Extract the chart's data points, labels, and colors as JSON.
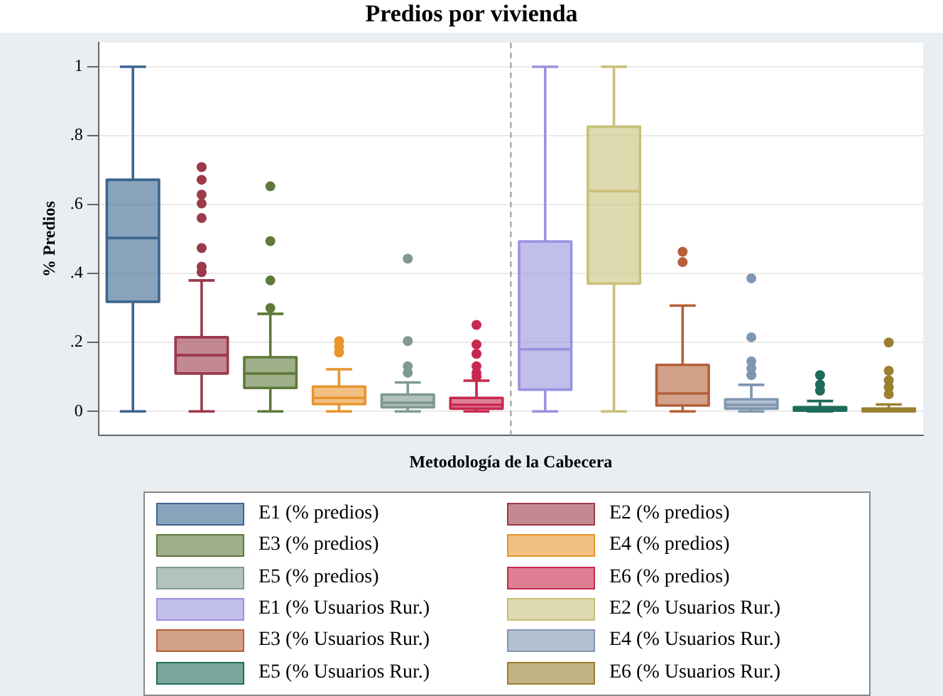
{
  "chart_data": {
    "type": "box",
    "title": "Predios por vivienda",
    "xlabel": "Metodología de la Cabecera",
    "ylabel": "% Predios",
    "categories": [
      null,
      null,
      null,
      null,
      null,
      null,
      null,
      null,
      null,
      null,
      null,
      null
    ],
    "ylim": [
      -0.07,
      1.07
    ],
    "yticks": [
      0,
      {
        "value": 0.2,
        "label": ".2"
      },
      {
        "value": 0.4,
        "label": ".4"
      },
      {
        "value": 0.6,
        "label": ".6"
      },
      {
        "value": 0.8,
        "label": ".8"
      },
      1
    ],
    "grid": "y",
    "legend": "bottom",
    "tick_labels": "y",
    "series": [
      {
        "name": "E1 (% predios)",
        "color": "#3c6590",
        "boxes": [
          {
            "low": 0,
            "q1": 0.318,
            "median": 0.503,
            "q3": 0.672,
            "high": 1
          },
          null,
          null,
          null,
          null,
          null,
          null,
          null,
          null,
          null,
          null,
          null
        ]
      },
      {
        "name": "E2 (% predios)",
        "color": "#9b3a4a",
        "boxes": [
          null,
          {
            "low": 0,
            "q1": 0.11,
            "median": 0.163,
            "q3": 0.215,
            "high": 0.38,
            "outliers": [
              0.709,
              0.672,
              0.629,
              0.603,
              0.561,
              0.474,
              0.42,
              0.404
            ]
          },
          null,
          null,
          null,
          null,
          null,
          null,
          null,
          null,
          null,
          null
        ]
      },
      {
        "name": "E3 (% predios)",
        "color": "#5e7a3a",
        "boxes": [
          null,
          null,
          {
            "low": 0,
            "q1": 0.068,
            "median": 0.11,
            "q3": 0.157,
            "high": 0.283,
            "outliers": [
              0.653,
              0.494,
              0.38,
              0.3
            ]
          },
          null,
          null,
          null,
          null,
          null,
          null,
          null,
          null,
          null
        ]
      },
      {
        "name": "E4 (% predios)",
        "color": "#e8952e",
        "boxes": [
          null,
          null,
          null,
          {
            "low": 0,
            "q1": 0.021,
            "median": 0.039,
            "q3": 0.072,
            "high": 0.122,
            "outliers": [
              0.204,
              0.188,
              0.171
            ]
          },
          null,
          null,
          null,
          null,
          null,
          null,
          null,
          null
        ]
      },
      {
        "name": "E5 (% predios)",
        "color": "#7f9a90",
        "boxes": [
          null,
          null,
          null,
          null,
          {
            "low": 0,
            "q1": 0.012,
            "median": 0.025,
            "q3": 0.049,
            "high": 0.084,
            "outliers": [
              0.443,
              0.204,
              0.131,
              0.112
            ]
          },
          null,
          null,
          null,
          null,
          null,
          null,
          null
        ]
      },
      {
        "name": "E6 (% predios)",
        "color": "#c8284e",
        "boxes": [
          null,
          null,
          null,
          null,
          null,
          {
            "low": 0,
            "q1": 0.008,
            "median": 0.019,
            "q3": 0.039,
            "high": 0.089,
            "outliers": [
              0.251,
              0.194,
              0.167,
              0.131,
              0.112,
              0.1
            ]
          },
          null,
          null,
          null,
          null,
          null,
          null
        ]
      },
      {
        "name": "E1 (% Usuarios Rur.)",
        "color": "#9a92de",
        "boxes": [
          null,
          null,
          null,
          null,
          null,
          null,
          {
            "low": 0,
            "q1": 0.063,
            "median": 0.18,
            "q3": 0.493,
            "high": 1
          },
          null,
          null,
          null,
          null,
          null
        ]
      },
      {
        "name": "E2 (% Usuarios Rur.)",
        "color": "#c9c07a",
        "boxes": [
          null,
          null,
          null,
          null,
          null,
          null,
          null,
          {
            "low": 0,
            "q1": 0.371,
            "median": 0.639,
            "q3": 0.826,
            "high": 1
          },
          null,
          null,
          null,
          null
        ]
      },
      {
        "name": "E3 (% Usuarios Rur.)",
        "color": "#b5603a",
        "boxes": [
          null,
          null,
          null,
          null,
          null,
          null,
          null,
          null,
          {
            "low": 0,
            "q1": 0.017,
            "median": 0.052,
            "q3": 0.135,
            "high": 0.307,
            "outliers": [
              0.463,
              0.433
            ]
          },
          null,
          null,
          null
        ]
      },
      {
        "name": "E4 (% Usuarios Rur.)",
        "color": "#8096b0",
        "boxes": [
          null,
          null,
          null,
          null,
          null,
          null,
          null,
          null,
          null,
          {
            "low": 0,
            "q1": 0.008,
            "median": 0.019,
            "q3": 0.035,
            "high": 0.077,
            "outliers": [
              0.386,
              0.215,
              0.145,
              0.125,
              0.105
            ]
          },
          null,
          null
        ]
      },
      {
        "name": "E5 (% Usuarios Rur.)",
        "color": "#1f6b5a",
        "boxes": [
          null,
          null,
          null,
          null,
          null,
          null,
          null,
          null,
          null,
          null,
          {
            "low": 0,
            "q1": 0.002,
            "median": 0.005,
            "q3": 0.012,
            "high": 0.03,
            "outliers": [
              0.105,
              0.078,
              0.06
            ]
          },
          null
        ]
      },
      {
        "name": "E6 (% Usuarios Rur.)",
        "color": "#9a8030",
        "boxes": [
          null,
          null,
          null,
          null,
          null,
          null,
          null,
          null,
          null,
          null,
          null,
          {
            "low": 0,
            "q1": 0,
            "median": 0.003,
            "q3": 0.008,
            "high": 0.02,
            "outliers": [
              0.2,
              0.118,
              0.09,
              0.07,
              0.05
            ]
          }
        ]
      }
    ]
  }
}
